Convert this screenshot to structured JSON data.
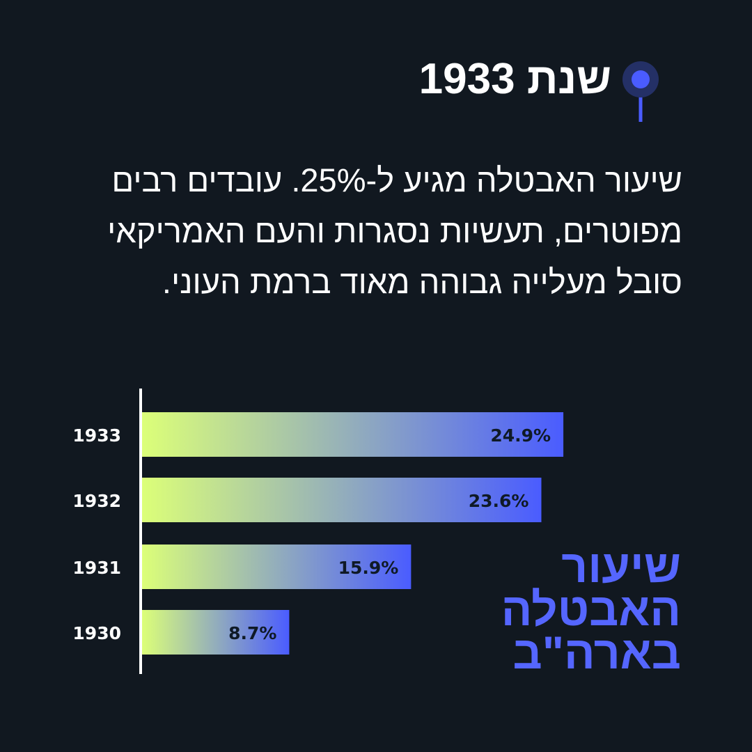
{
  "header": {
    "title": "שנת 1933"
  },
  "body_text": "שיעור האבטלה מגיע ל-25%. עובדים רבים מפוטרים, תעשיות נסגרות והעם האמריקאי סובל מעלייה גבוהה מאוד ברמת העוני.",
  "colors": {
    "accent": "#4a5cff",
    "bar_start": "#dcff78",
    "bar_end": "#4a5cff",
    "background": "#111820"
  },
  "chart_data": {
    "type": "bar",
    "orientation": "horizontal",
    "title": "שיעור האבטלה בארה\"ב",
    "categories": [
      "1933",
      "1932",
      "1931",
      "1930"
    ],
    "values": [
      24.9,
      23.6,
      15.9,
      8.7
    ],
    "labels": [
      "24.9%",
      "23.6%",
      "15.9%",
      "8.7%"
    ],
    "unit": "%",
    "grid": false
  }
}
